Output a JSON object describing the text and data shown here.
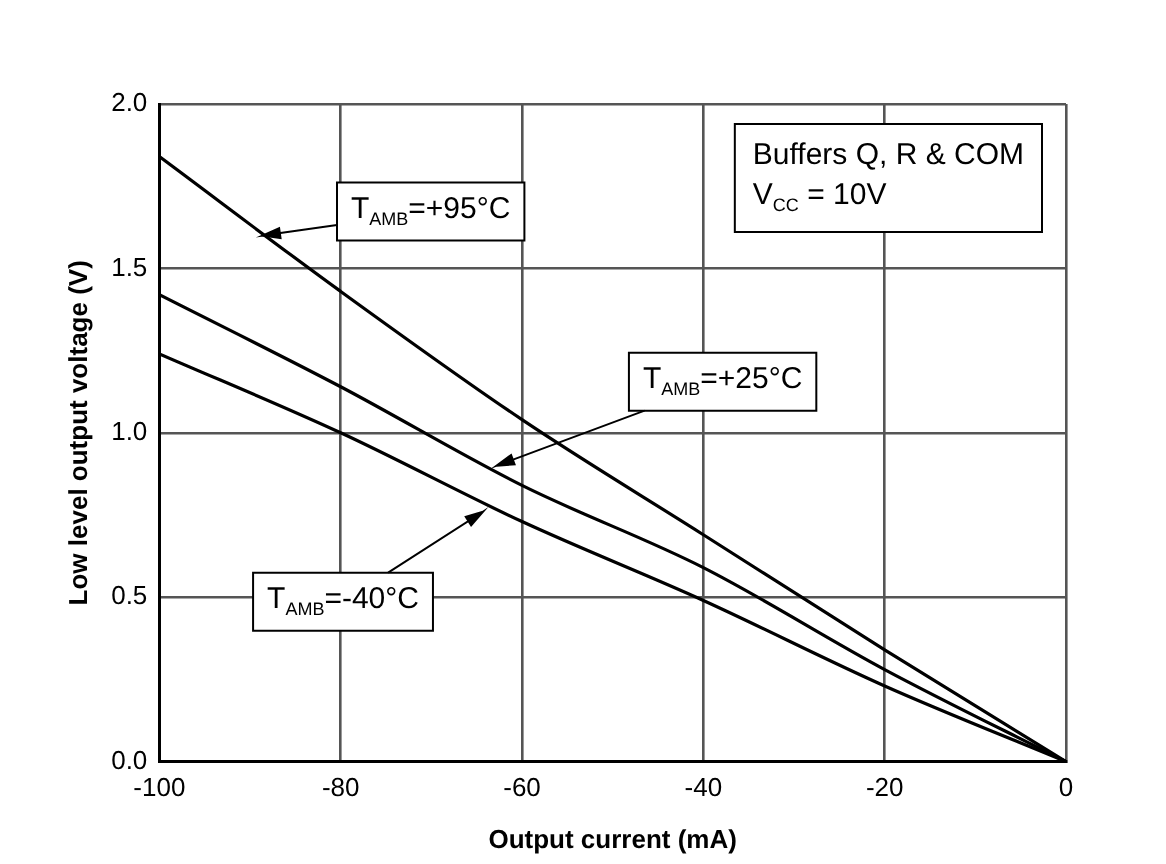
{
  "chart_data": {
    "type": "line",
    "xlabel": "Output current (mA)",
    "ylabel": "Low level output voltage (V)",
    "x": [
      -100,
      -80,
      -60,
      -40,
      -20,
      0
    ],
    "series": [
      {
        "color": "#000000",
        "values": [
          1.84,
          1.43,
          1.04,
          0.69,
          0.34,
          0
        ]
      },
      {
        "color": "#000000",
        "values": [
          1.42,
          1.14,
          0.84,
          0.59,
          0.28,
          0
        ]
      },
      {
        "color": "#000000",
        "values": [
          1.24,
          1.0,
          0.73,
          0.49,
          0.23,
          0
        ]
      }
    ],
    "xlim": [
      -100,
      0
    ],
    "xticks": [
      -100,
      -80,
      -60,
      -40,
      -20,
      0
    ],
    "ylim": [
      0,
      2
    ],
    "yticks": [
      {
        "value": 0,
        "label": "0.0"
      },
      {
        "value": 0.5,
        "label": "0.5"
      },
      {
        "value": 1,
        "label": "1.0"
      },
      {
        "value": 1.5,
        "label": "1.5"
      },
      {
        "value": 2,
        "label": "2.0"
      }
    ],
    "grid": true,
    "legend": false,
    "marker": "none",
    "line_style": "solid",
    "annotations": [
      {
        "text": "T$_{AMB}$=+95°C",
        "x": -88.6,
        "y": 1.6
      },
      {
        "text": "T$_{AMB}$=+25°C",
        "x": -62.8,
        "y": 0.9
      },
      {
        "text": "T$_{AMB}$=-40°C",
        "x": -64.3,
        "y": 0.76
      },
      "Buffers Q, R & COM\nV$_{CC}$ = 10V"
    ]
  }
}
